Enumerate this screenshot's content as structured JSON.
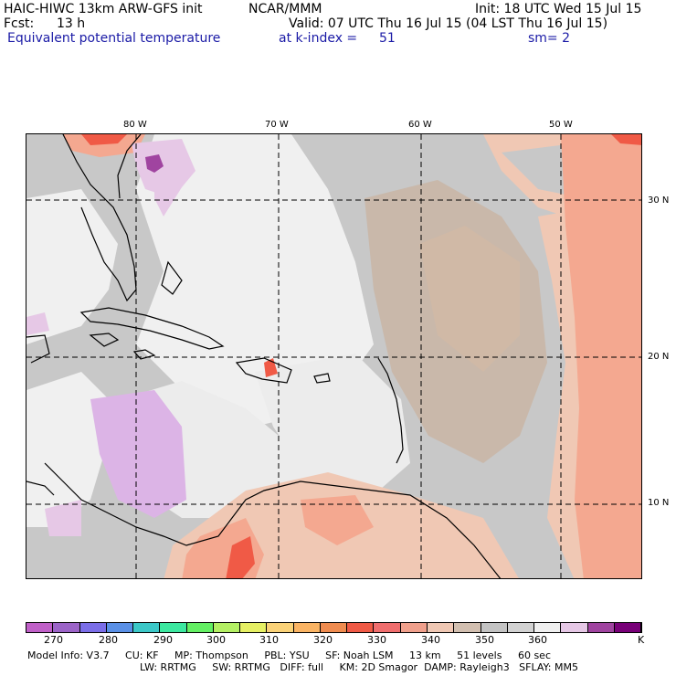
{
  "header": {
    "model_title": "HAIC-HIWC 13km ARW-GFS init",
    "org": "NCAR/MMM",
    "init": "Init: 18 UTC Wed 15 Jul 15",
    "fcst_label": "Fcst:",
    "fcst_value": "13 h",
    "valid": "Valid: 07 UTC Thu 16 Jul 15 (04 LST Thu 16 Jul 15)",
    "field": "Equivalent potential temperature",
    "level": "at k-index =",
    "level_value": "51",
    "smoothing": "sm= 2"
  },
  "map": {
    "lon_labels": [
      "80 W",
      "70 W",
      "60 W",
      "50 W"
    ],
    "lat_labels": [
      "30 N",
      "20 N",
      "10 N"
    ]
  },
  "colorbar": {
    "colors": [
      "#c060c8",
      "#9c64c8",
      "#7b6ee8",
      "#5a90e6",
      "#3cc8c8",
      "#3ce8a0",
      "#64f064",
      "#b4f064",
      "#e6f064",
      "#fad278",
      "#fab464",
      "#f08c50",
      "#f05a46",
      "#f06e6e",
      "#f0a08c",
      "#f0c8b4",
      "#d2bfb0",
      "#c3c3c3",
      "#d2d2d2",
      "#f0f0f0",
      "#e6c8e6",
      "#a044a0",
      "#780078"
    ],
    "labels": [
      "270",
      "280",
      "290",
      "300",
      "310",
      "320",
      "330",
      "340",
      "350",
      "360"
    ],
    "unit": "K"
  },
  "footer": {
    "line1": "Model Info: V3.7     CU: KF     MP: Thompson     PBL: YSU     SF: Noah LSM     13 km     51 levels     60 sec",
    "line2": "LW: RRTMG     SW: RRTMG   DIFF: full     KM: 2D Smagor  DAMP: Rayleigh3   SFLAY: MM5"
  }
}
